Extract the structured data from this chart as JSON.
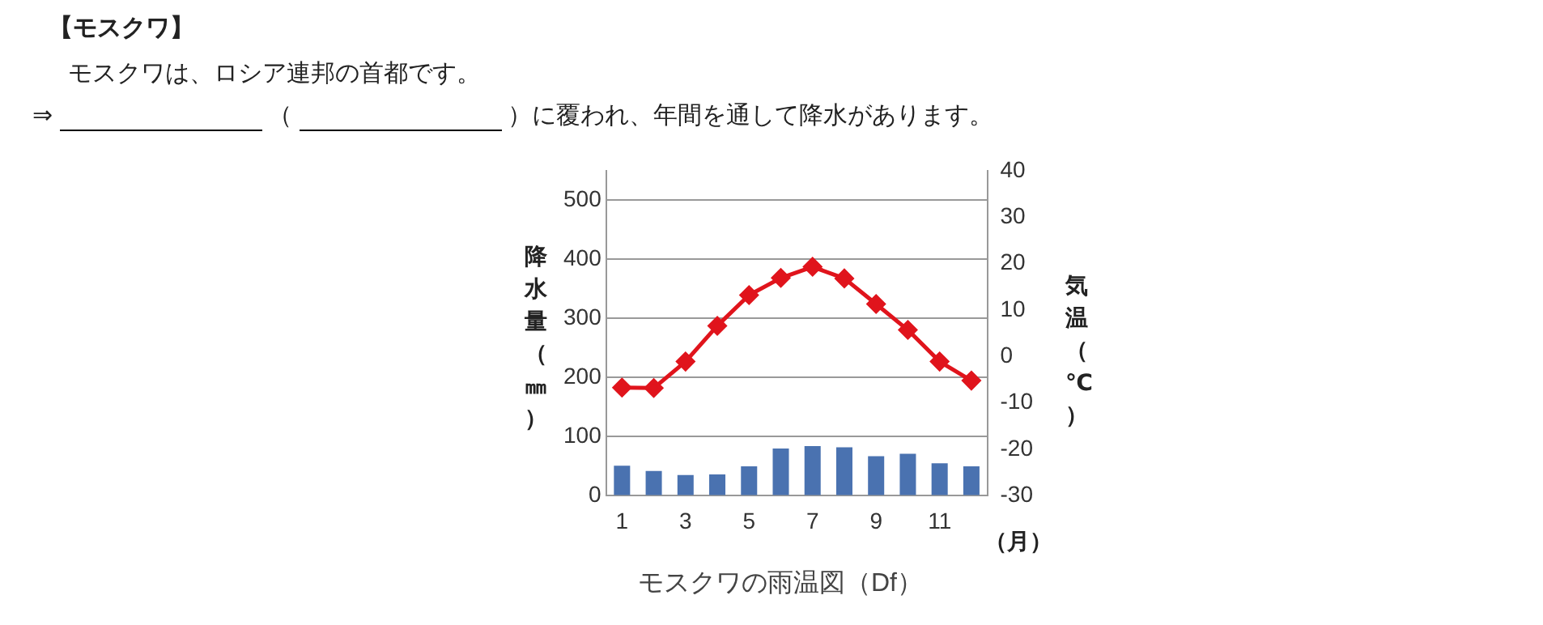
{
  "chart_data": {
    "type": "bar",
    "title": "【モスクワ】",
    "subtitle": "モスクワは、ロシア連邦の首都です。",
    "annotations": [
      "⇒",
      "（",
      "）に覆われ、年間を通して降水があります。",
      "モスクワの雨温図（Df）"
    ],
    "xlabel": "（月）",
    "ylabel": "降水量（㎜）",
    "y2label": "気温（℃）",
    "categories": [
      "1",
      null,
      "3",
      null,
      "5",
      null,
      "7",
      null,
      "9",
      null,
      "11",
      null
    ],
    "series": [
      {
        "color": "#4a72b0",
        "values": [
          51,
          42,
          35,
          36,
          50,
          80,
          84,
          82,
          67,
          71,
          55,
          50
        ]
      },
      {
        "type": "line",
        "axis": "y2",
        "color": "#e0141c",
        "marker": "diamond",
        "values": [
          -6.7,
          -6.8,
          -1.1,
          6.6,
          13.2,
          16.9,
          19.3,
          16.8,
          11.3,
          5.7,
          -1.1,
          -5.2
        ]
      }
    ],
    "ylim": [
      0,
      550
    ],
    "yticks": [
      0,
      100,
      200,
      300,
      400,
      500
    ],
    "y2lim": [
      -30,
      40
    ],
    "y2ticks": [
      -30,
      -20,
      -10,
      0,
      10,
      20,
      30,
      40
    ],
    "grid": "y",
    "legend": false
  }
}
